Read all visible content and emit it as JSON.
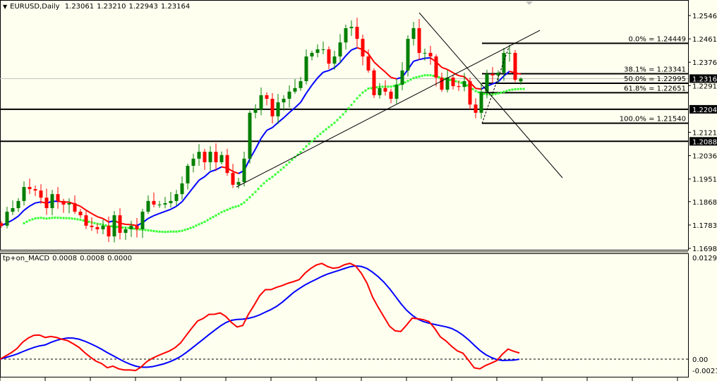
{
  "header": {
    "symbol_icon": "triangle-down-icon",
    "symbol": "EURUSD,Daily",
    "open": "1.23061",
    "high": "1.23210",
    "low": "1.22943",
    "close": "1.23164"
  },
  "indicator": {
    "name": "tp+on_MACD",
    "values": [
      "0.0008",
      "0.0008",
      "0.0000"
    ]
  },
  "colors": {
    "background": "#fffff0",
    "bull": "#008000",
    "bear": "#ff0000",
    "ma_up": "#0000ff",
    "ma_down": "#ff0000",
    "ma_long": "#33ff33",
    "macd_main": "#ff0000",
    "macd_signal": "#0000ff"
  },
  "chart_data": {
    "type": "candlestick",
    "price_axis_ticks": [
      "1.25460",
      "1.24610",
      "1.23760",
      "1.22910",
      "1.21210",
      "1.20360",
      "1.19510",
      "1.18685",
      "1.17835",
      "1.16985"
    ],
    "price_labels": [
      {
        "text": "1.23164",
        "price": 1.23164
      },
      {
        "text": "1.22047",
        "price": 1.22047
      },
      {
        "text": "1.20881",
        "price": 1.20881
      }
    ],
    "horizontal_lines": [
      1.22047,
      1.20881
    ],
    "current_price": 1.23164,
    "fibonacci": [
      {
        "label": "0.0% = 1.24449",
        "price": 1.24449
      },
      {
        "label": "38.1% = 1.23341",
        "price": 1.23341
      },
      {
        "label": "50.0% = 1.22995",
        "price": 1.22995
      },
      {
        "label": "61.8% = 1.22651",
        "price": 1.22651
      },
      {
        "label": "100.0% = 1.21540",
        "price": 1.2154
      }
    ],
    "closes": [
      1.1781,
      1.1832,
      1.1845,
      1.1871,
      1.1922,
      1.1914,
      1.1909,
      1.1883,
      1.1845,
      1.1896,
      1.1871,
      1.1858,
      1.1863,
      1.1832,
      1.1819,
      1.1781,
      1.1776,
      1.1768,
      1.1781,
      1.1742,
      1.1819,
      1.1755,
      1.1768,
      1.1781,
      1.1768,
      1.1832,
      1.1871,
      1.1858,
      1.1858,
      1.1863,
      1.1871,
      1.1896,
      1.1935,
      1.1999,
      1.2025,
      1.205,
      1.2012,
      1.205,
      1.2012,
      1.2038,
      1.1973,
      1.193,
      1.194,
      1.2025,
      1.2192,
      1.2205,
      1.2256,
      1.2243,
      1.2179,
      1.223,
      1.2243,
      1.2269,
      1.2282,
      1.2307,
      1.2397,
      1.241,
      1.2423,
      1.2423,
      1.2371,
      1.2397,
      1.2448,
      1.25,
      1.2505,
      1.2461,
      1.2397,
      1.2346,
      1.2256,
      1.2282,
      1.2269,
      1.2243,
      1.2294,
      1.2346,
      1.2461,
      1.25,
      1.241,
      1.241,
      1.2397,
      1.232,
      1.2276,
      1.232,
      1.2289,
      1.2286,
      1.2307,
      1.2222,
      1.2192,
      1.2269,
      1.2333,
      1.2328,
      1.2338,
      1.241,
      1.241,
      1.2312,
      1.23164
    ],
    "last_candle": {
      "open": 1.23061,
      "high": 1.2321,
      "low": 1.22943,
      "close": 1.23164
    },
    "macd_axis_ticks": [
      "0.0129",
      "0.00",
      "-0.0021"
    ],
    "macd_range": [
      -0.0021,
      0.0129
    ]
  }
}
